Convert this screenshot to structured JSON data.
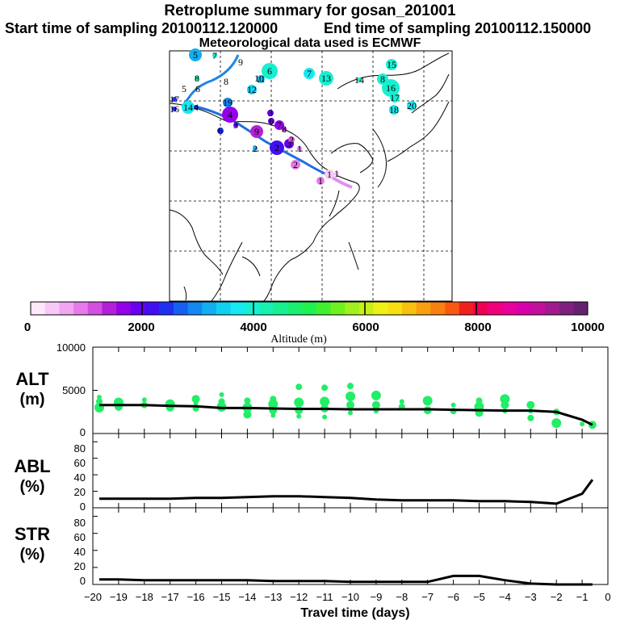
{
  "title": "Retroplume summary for gosan_201001",
  "start_label": "Start time of sampling 20100112.120000",
  "end_label": "End time of sampling 20100112.150000",
  "met_label": "Meteorological data used is ECMWF",
  "colorbar": {
    "ticks": [
      "0",
      "2000",
      "4000",
      "6000",
      "8000",
      "10000"
    ],
    "label": "Altitude (m)",
    "colors": [
      "#fde8fd",
      "#f8c9f8",
      "#f0a6f0",
      "#e57ae8",
      "#d24fe0",
      "#b51fd8",
      "#9400e8",
      "#6a00f0",
      "#4010f0",
      "#2030f0",
      "#1460f0",
      "#1288f0",
      "#12aef0",
      "#10d0f0",
      "#14eaf0",
      "#16f0d0",
      "#18f0b0",
      "#18f090",
      "#1af070",
      "#20f050",
      "#40f030",
      "#70f020",
      "#a0f020",
      "#c8f018",
      "#eef018",
      "#f8e010",
      "#f8c010",
      "#f8a010",
      "#f88010",
      "#f85810",
      "#f02020",
      "#f00050",
      "#f0007a",
      "#e8009a",
      "#d800a8",
      "#c0109c",
      "#a01c8e",
      "#80207e",
      "#662070"
    ]
  },
  "trajectory_labels": [
    "5",
    "7",
    "9",
    "8",
    "5",
    "6",
    "8",
    "6",
    "11",
    "10",
    "12",
    "7",
    "13",
    "14",
    "15",
    "8",
    "16",
    "17",
    "18",
    "20",
    "17",
    "14",
    "19",
    "16",
    "4",
    "3",
    "4",
    "9",
    "3",
    "6",
    "2",
    "6",
    "7",
    "8",
    "2",
    "2",
    "3",
    "1",
    "1",
    "1",
    "1",
    "2"
  ],
  "chart_data": [
    {
      "type": "line",
      "name": "ALT",
      "ylabel": "ALT",
      "yunit": "(m)",
      "ylim": [
        0,
        10000
      ],
      "yticks": [
        "0",
        "5000",
        "10000"
      ],
      "x": [
        -19.75,
        -19,
        -18,
        -17,
        -16,
        -15,
        -14,
        -13,
        -12,
        -11,
        -10,
        -9,
        -8,
        -7,
        -6,
        -5,
        -4,
        -3,
        -2,
        -1,
        -0.6
      ],
      "values": [
        3300,
        3300,
        3300,
        3200,
        3150,
        2950,
        2950,
        2900,
        2850,
        2850,
        2800,
        2800,
        2800,
        2800,
        2750,
        2700,
        2650,
        2650,
        2500,
        1600,
        1000
      ],
      "cluster_altitudes": [
        [
          -19.75,
          3000
        ],
        [
          -19.75,
          3700
        ],
        [
          -19.75,
          4200
        ],
        [
          -19,
          3100
        ],
        [
          -19,
          3600
        ],
        [
          -18,
          3300
        ],
        [
          -18,
          3900
        ],
        [
          -17,
          3000
        ],
        [
          -17,
          3400
        ],
        [
          -16,
          2900
        ],
        [
          -16,
          3500
        ],
        [
          -16,
          4000
        ],
        [
          -15,
          3100
        ],
        [
          -15,
          3700
        ],
        [
          -15,
          4500
        ],
        [
          -14,
          2200
        ],
        [
          -14,
          3000
        ],
        [
          -14,
          3800
        ],
        [
          -13,
          2100
        ],
        [
          -13,
          2700
        ],
        [
          -13,
          3400
        ],
        [
          -13,
          4000
        ],
        [
          -12,
          2000
        ],
        [
          -12,
          2700
        ],
        [
          -12,
          3600
        ],
        [
          -12,
          5400
        ],
        [
          -11,
          1900
        ],
        [
          -11,
          2900
        ],
        [
          -11,
          3700
        ],
        [
          -11,
          5300
        ],
        [
          -10,
          2400
        ],
        [
          -10,
          3300
        ],
        [
          -10,
          4300
        ],
        [
          -10,
          5500
        ],
        [
          -9,
          2600
        ],
        [
          -9,
          3300
        ],
        [
          -9,
          4400
        ],
        [
          -8,
          3100
        ],
        [
          -8,
          3700
        ],
        [
          -7,
          2700
        ],
        [
          -7,
          3800
        ],
        [
          -6,
          2600
        ],
        [
          -6,
          3300
        ],
        [
          -5,
          2400
        ],
        [
          -5,
          3100
        ],
        [
          -5,
          3800
        ],
        [
          -4,
          2600
        ],
        [
          -4,
          3300
        ],
        [
          -4,
          4000
        ],
        [
          -3,
          1800
        ],
        [
          -3,
          2600
        ],
        [
          -3,
          3300
        ],
        [
          -2,
          1200
        ],
        [
          -2,
          2500
        ],
        [
          -1,
          1100
        ],
        [
          -0.6,
          1000
        ]
      ]
    },
    {
      "type": "line",
      "name": "ABL",
      "ylabel": "ABL",
      "yunit": "(%)",
      "ylim": [
        0,
        90
      ],
      "yticks": [
        "0",
        "20",
        "40",
        "60",
        "80"
      ],
      "x": [
        -19.75,
        -19,
        -18,
        -17,
        -16,
        -15,
        -14,
        -13,
        -12,
        -11,
        -10,
        -9,
        -8,
        -7,
        -6,
        -5,
        -4,
        -3,
        -2,
        -1,
        -0.6
      ],
      "values": [
        11,
        11,
        11,
        11,
        12,
        12,
        13,
        14,
        14,
        13,
        12,
        10,
        9,
        9,
        9,
        8,
        8,
        7,
        5,
        17,
        34
      ]
    },
    {
      "type": "line",
      "name": "STR",
      "ylabel": "STR",
      "yunit": "(%)",
      "ylim": [
        0,
        90
      ],
      "yticks": [
        "0",
        "20",
        "40",
        "60",
        "80"
      ],
      "x": [
        -19.75,
        -19,
        -18,
        -17,
        -16,
        -15,
        -14,
        -13,
        -12,
        -11,
        -10,
        -9,
        -8,
        -7,
        -6,
        -5,
        -4,
        -3,
        -2,
        -1,
        -0.6
      ],
      "values": [
        6,
        6,
        5,
        5,
        5,
        5,
        5,
        4,
        4,
        4,
        3,
        3,
        3,
        3,
        10,
        10,
        5,
        1,
        0,
        0,
        0
      ]
    }
  ],
  "xaxis": {
    "label": "Travel time (days)",
    "ticks": [
      "−20",
      "−19",
      "−18",
      "−17",
      "−16",
      "−15",
      "−14",
      "−13",
      "−12",
      "−11",
      "−10",
      "−9",
      "−8",
      "−7",
      "−6",
      "−5",
      "−4",
      "−3",
      "−2",
      "−1",
      "0"
    ],
    "xlim": [
      -20,
      0
    ]
  }
}
